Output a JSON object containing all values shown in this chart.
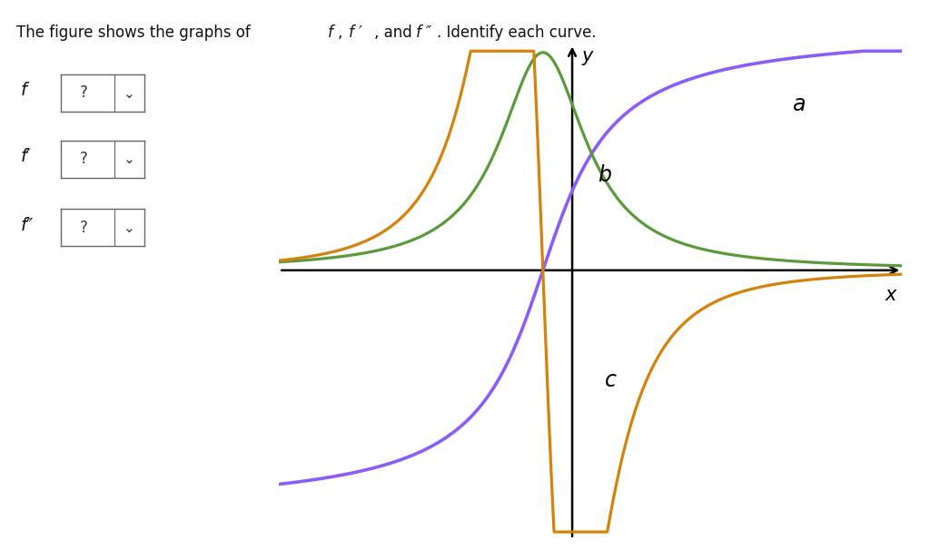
{
  "curve_a_color": "#8B5CF6",
  "curve_b_color": "#5A9A3A",
  "curve_c_color": "#D4820A",
  "axis_color": "#000000",
  "background_color": "#ffffff",
  "label_a": "a",
  "label_b": "b",
  "label_c": "c",
  "label_x": "x",
  "label_y": "y",
  "xlim": [
    -4.0,
    4.5
  ],
  "ylim": [
    -3.8,
    3.2
  ],
  "line_width": 2.3,
  "title_main": "The figure shows the graphs of ",
  "title_italic1": "f",
  "title_rest1": ", ",
  "title_italic2": "f ′",
  "title_rest2": ", and ",
  "title_italic3": "f ″",
  "title_rest3": ". Identify each curve.",
  "left_label_f": "f",
  "left_label_fp": "f ′",
  "left_label_fpp": "f ″",
  "dropdown_symbol": "? ∨",
  "text_fontsize": 12,
  "label_fontsize": 15,
  "curve_label_fontsize": 17
}
